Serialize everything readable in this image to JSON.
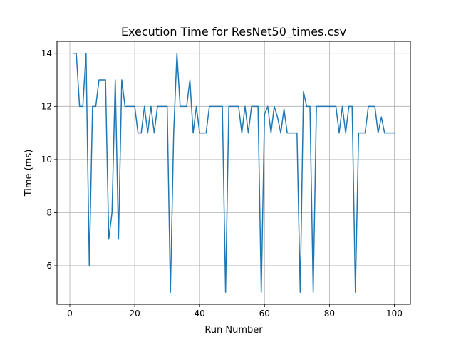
{
  "chart_data": {
    "type": "line",
    "title": "Execution Time for ResNet50_times.csv",
    "xlabel": "Run Number",
    "ylabel": "Time (ms)",
    "xlim": [
      -3.95,
      104.95
    ],
    "ylim": [
      4.55,
      14.45
    ],
    "xticks": [
      0,
      20,
      40,
      60,
      80,
      100
    ],
    "yticks": [
      6,
      8,
      10,
      12,
      14
    ],
    "grid": true,
    "series": [
      {
        "color": "#1f77b4",
        "x": [
          1,
          2,
          3,
          4,
          5,
          6,
          7,
          8,
          9,
          10,
          11,
          12,
          13,
          14,
          15,
          16,
          17,
          18,
          19,
          20,
          21,
          22,
          23,
          24,
          25,
          26,
          27,
          28,
          29,
          30,
          31,
          32,
          33,
          34,
          35,
          36,
          37,
          38,
          39,
          40,
          41,
          42,
          43,
          44,
          45,
          46,
          47,
          48,
          49,
          50,
          51,
          52,
          53,
          54,
          55,
          56,
          57,
          58,
          59,
          60,
          61,
          62,
          63,
          64,
          65,
          66,
          67,
          68,
          69,
          70,
          71,
          72,
          73,
          74,
          75,
          76,
          77,
          78,
          79,
          80,
          81,
          82,
          83,
          84,
          85,
          86,
          87,
          88,
          89,
          90,
          91,
          92,
          93,
          94,
          95,
          96,
          97,
          98,
          99,
          100
        ],
        "y": [
          14,
          14,
          12,
          12,
          14,
          6,
          12,
          12,
          13,
          13,
          13,
          7,
          8,
          13,
          7,
          13,
          12,
          12,
          12,
          12,
          11,
          11,
          12,
          11,
          12,
          11,
          12,
          12,
          12,
          12,
          5,
          11,
          14,
          12,
          12,
          12,
          13,
          11,
          12,
          11,
          11,
          11,
          12,
          12,
          12,
          12,
          12,
          5,
          12,
          12,
          12,
          12,
          11,
          12,
          11,
          12,
          12,
          12,
          5,
          11.7,
          12,
          11,
          12,
          11.6,
          11,
          11.9,
          11,
          11,
          11,
          11,
          5,
          12.55,
          12,
          12,
          5,
          12,
          12,
          12,
          12,
          12,
          12,
          12,
          11,
          12,
          11,
          12,
          12,
          5,
          11,
          11,
          11,
          12,
          12,
          12,
          11,
          11.6,
          11,
          11,
          11,
          11
        ]
      }
    ]
  }
}
